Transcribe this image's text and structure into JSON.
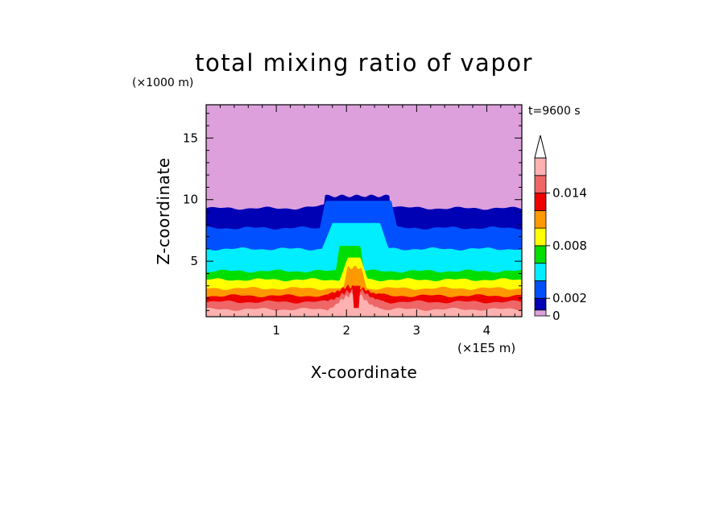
{
  "chart_data": {
    "type": "contour",
    "title": "total mixing ratio of vapor",
    "xlabel": "X-coordinate",
    "ylabel": "Z-coordinate",
    "x_unit": "(×1E5 m)",
    "y_unit": "(×1000 m)",
    "time_label": "t=9600 s",
    "xlim": [
      0,
      4.5
    ],
    "ylim": [
      0.5,
      17.7
    ],
    "x_ticks": [
      1,
      2,
      3,
      4
    ],
    "y_ticks": [
      5,
      10,
      15
    ],
    "colorbar": {
      "levels": [
        0,
        0.0005,
        0.002,
        0.004,
        0.006,
        0.008,
        0.01,
        0.012,
        0.014,
        0.016
      ],
      "colors": [
        "#dda0dd",
        "#0000b4",
        "#0050ff",
        "#00eeff",
        "#00dd00",
        "#ffff00",
        "#ff9900",
        "#ee0000",
        "#ee6666",
        "#ffb0b0"
      ],
      "labeled_ticks": [
        {
          "value": 0,
          "label": "0"
        },
        {
          "value": 0.002,
          "label": "0.002"
        },
        {
          "value": 0.008,
          "label": "0.008"
        },
        {
          "value": 0.014,
          "label": "0.014"
        }
      ],
      "extend": "max"
    },
    "environment_boundaries_z_km": {
      "0.0005": 9.3,
      "0.002": 7.7,
      "0.004": 6.0,
      "0.006": 4.2,
      "0.008": 3.5,
      "0.010": 2.8,
      "0.012": 2.2,
      "0.014": 1.7,
      "0.016": 1.1
    },
    "plume": {
      "center_x": 2.1,
      "top_z_km": 10.3,
      "note": "convective updraft transporting moist air upward near x=2.0-2.3"
    }
  }
}
